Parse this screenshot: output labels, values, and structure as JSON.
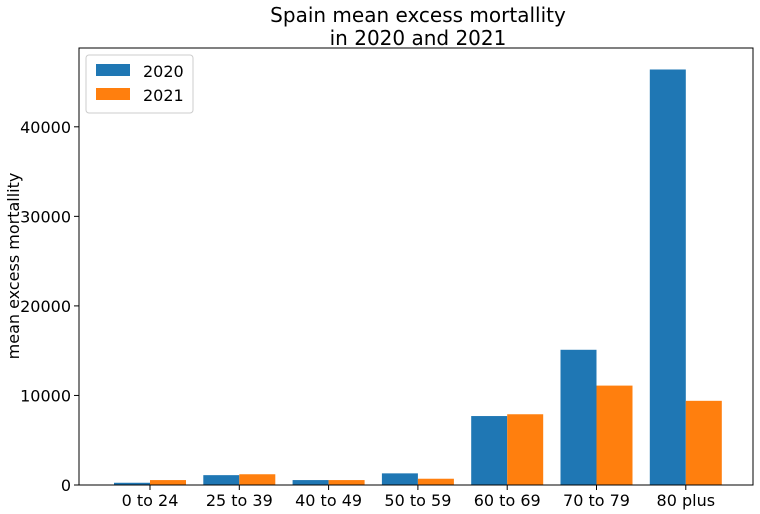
{
  "chart_data": {
    "type": "bar",
    "title_lines": [
      "Spain mean excess mortallity",
      "in 2020 and 2021"
    ],
    "xlabel": "",
    "ylabel": "mean excess mortallity",
    "categories": [
      "0 to 24",
      "25 to 39",
      "40 to 49",
      "50 to 59",
      "60 to 69",
      "70 to 79",
      "80 plus"
    ],
    "series": [
      {
        "name": "2020",
        "color": "#1f77b4",
        "values": [
          250,
          1100,
          550,
          1300,
          7700,
          15100,
          46400
        ]
      },
      {
        "name": "2021",
        "color": "#ff7f0e",
        "values": [
          550,
          1200,
          550,
          700,
          7900,
          11100,
          9400
        ]
      }
    ],
    "ylim": [
      0,
      48800
    ],
    "yticks": [
      0,
      10000,
      20000,
      30000,
      40000
    ],
    "legend_position": "top-left",
    "grid": false
  }
}
